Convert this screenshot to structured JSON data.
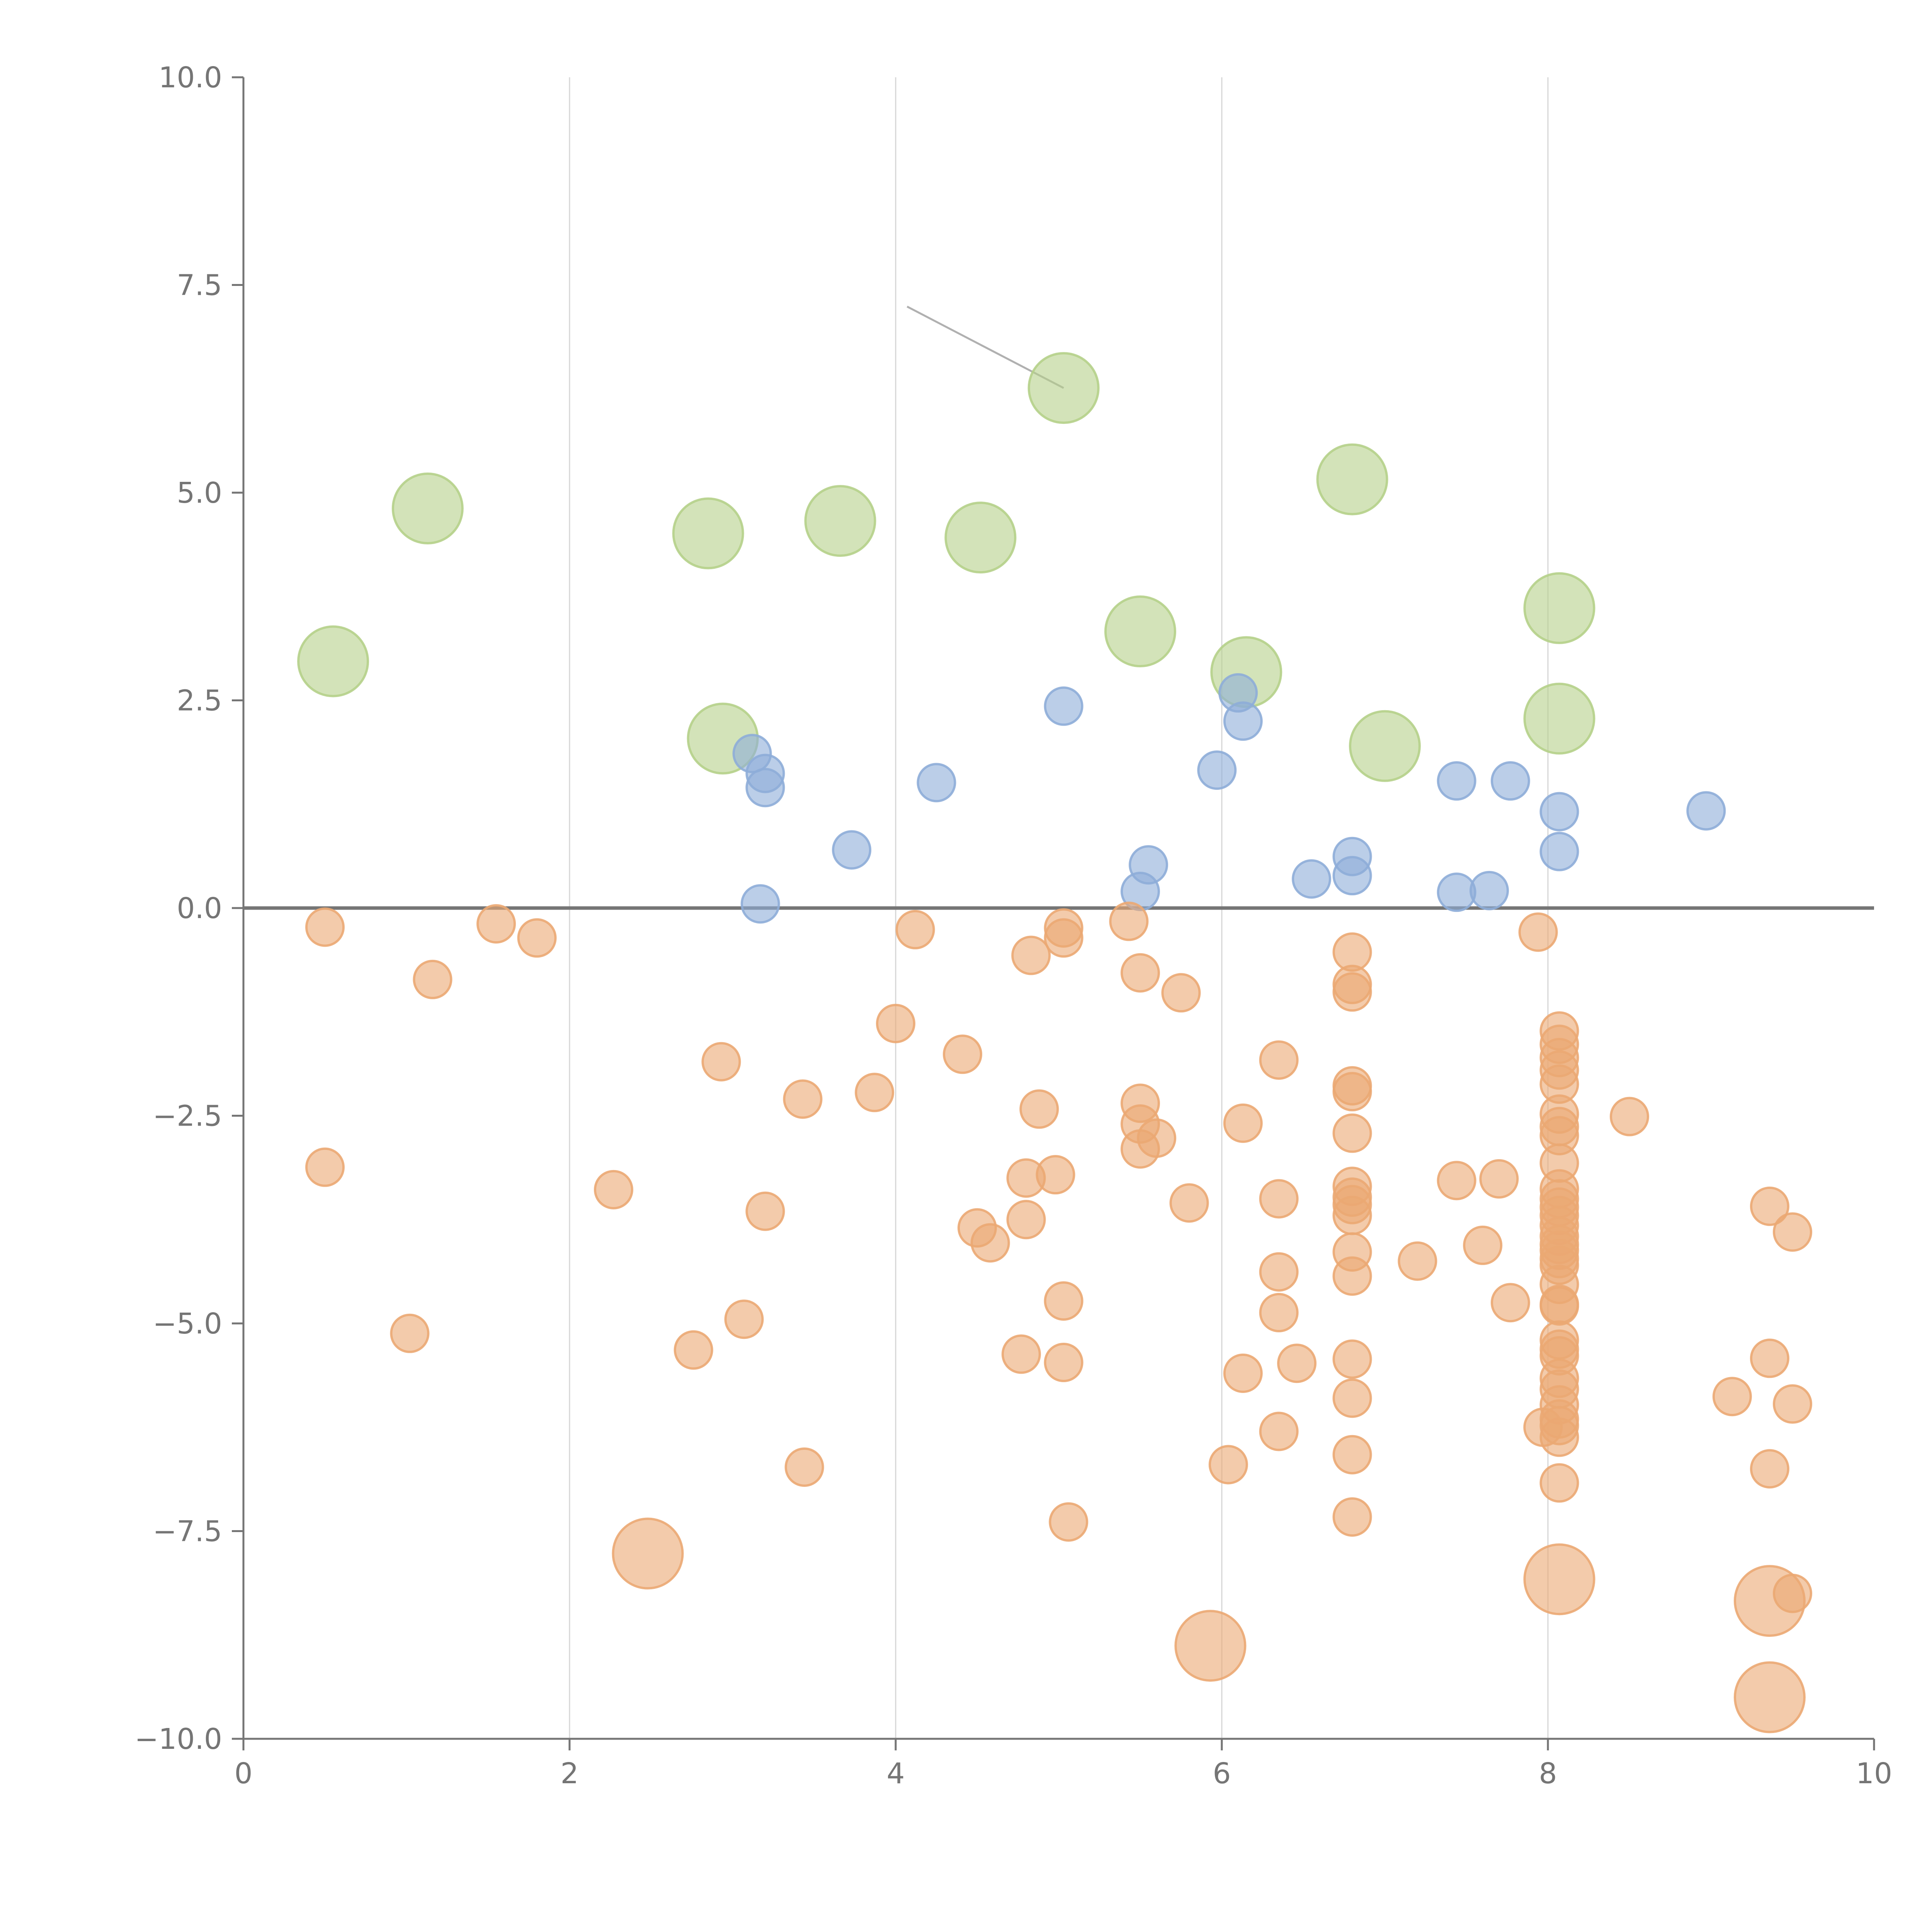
{
  "chart_data": {
    "type": "scatter",
    "title": "",
    "xlabel": "",
    "ylabel": "",
    "xlim": [
      0,
      10
    ],
    "ylim": [
      -10,
      10
    ],
    "x_ticks": [
      0,
      2,
      4,
      6,
      8,
      10
    ],
    "y_ticks": [
      -10,
      -7.5,
      -5,
      -2.5,
      0,
      2.5,
      5,
      7.5,
      10
    ],
    "x_tick_labels": [
      "0",
      "2",
      "4",
      "6",
      "8",
      "10"
    ],
    "y_tick_labels": [
      "−10.0",
      "−7.5",
      "−5.0",
      "−2.5",
      "0.0",
      "2.5",
      "5.0",
      "7.5",
      "10.0"
    ],
    "grid": "vertical lines at x ticks",
    "zero_line": true,
    "legend": "none",
    "colors": {
      "green": "#b5d08a",
      "blue": "#8eadd8",
      "orange": "#eba973"
    },
    "series": [
      {
        "color": "#b5d08a",
        "size": "large",
        "points": [
          [
            0.55,
            2.97
          ],
          [
            1.13,
            4.81
          ],
          [
            2.85,
            4.51
          ],
          [
            3.66,
            4.66
          ],
          [
            4.52,
            4.46
          ],
          [
            5.03,
            6.26
          ],
          [
            5.5,
            3.33
          ],
          [
            6.15,
            2.84
          ],
          [
            6.8,
            5.16
          ],
          [
            7.0,
            1.95
          ],
          [
            8.07,
            3.61
          ],
          [
            8.07,
            2.28
          ],
          [
            2.94,
            2.04
          ]
        ]
      },
      {
        "color": "#8eadd8",
        "size": "small",
        "points": [
          [
            3.12,
            1.86
          ],
          [
            3.2,
            1.62
          ],
          [
            3.2,
            1.45
          ],
          [
            3.17,
            0.05
          ],
          [
            3.73,
            0.7
          ],
          [
            4.25,
            1.51
          ],
          [
            5.03,
            2.43
          ],
          [
            5.55,
            0.52
          ],
          [
            5.5,
            0.2
          ],
          [
            5.97,
            1.66
          ],
          [
            6.1,
            2.59
          ],
          [
            6.13,
            2.25
          ],
          [
            6.55,
            0.35
          ],
          [
            6.8,
            0.62
          ],
          [
            6.8,
            0.39
          ],
          [
            7.44,
            0.19
          ],
          [
            7.64,
            0.21
          ],
          [
            7.44,
            1.53
          ],
          [
            7.77,
            1.53
          ],
          [
            8.07,
            1.16
          ],
          [
            8.07,
            0.68
          ],
          [
            8.97,
            1.17
          ]
        ]
      },
      {
        "color": "#eba973",
        "size": "small",
        "points": [
          [
            0.5,
            -0.23
          ],
          [
            1.16,
            -0.86
          ],
          [
            1.55,
            -0.19
          ],
          [
            1.8,
            -0.36
          ],
          [
            0.5,
            -3.12
          ],
          [
            1.02,
            -5.12
          ],
          [
            2.27,
            -3.39
          ],
          [
            2.76,
            -5.32
          ],
          [
            2.93,
            -1.85
          ],
          [
            3.07,
            -4.95
          ],
          [
            3.2,
            -3.65
          ],
          [
            3.43,
            -2.3
          ],
          [
            3.44,
            -6.73
          ],
          [
            3.87,
            -2.22
          ],
          [
            4.0,
            -1.39
          ],
          [
            4.12,
            -0.26
          ],
          [
            4.41,
            -1.76
          ],
          [
            4.5,
            -3.85
          ],
          [
            4.58,
            -4.03
          ],
          [
            4.77,
            -5.37
          ],
          [
            4.8,
            -3.25
          ],
          [
            4.8,
            -3.75
          ],
          [
            4.83,
            -0.57
          ],
          [
            4.88,
            -2.42
          ],
          [
            4.98,
            -3.21
          ],
          [
            5.03,
            -0.24
          ],
          [
            5.03,
            -0.36
          ],
          [
            5.03,
            -4.73
          ],
          [
            5.03,
            -5.47
          ],
          [
            5.06,
            -7.39
          ],
          [
            5.43,
            -0.16
          ],
          [
            5.5,
            -0.78
          ],
          [
            5.5,
            -2.35
          ],
          [
            5.5,
            -2.6
          ],
          [
            5.5,
            -2.9
          ],
          [
            5.6,
            -2.77
          ],
          [
            5.75,
            -1.02
          ],
          [
            5.8,
            -3.55
          ],
          [
            6.04,
            -6.7
          ],
          [
            6.13,
            -2.59
          ],
          [
            6.13,
            -5.6
          ],
          [
            6.35,
            -1.83
          ],
          [
            6.35,
            -3.5
          ],
          [
            6.35,
            -4.38
          ],
          [
            6.35,
            -4.87
          ],
          [
            6.35,
            -6.3
          ],
          [
            6.46,
            -5.48
          ],
          [
            6.8,
            -0.53
          ],
          [
            6.8,
            -0.92
          ],
          [
            6.8,
            -1.01
          ],
          [
            6.8,
            -2.14
          ],
          [
            6.8,
            -2.21
          ],
          [
            6.8,
            -2.71
          ],
          [
            6.8,
            -3.35
          ],
          [
            6.8,
            -3.48
          ],
          [
            6.8,
            -3.57
          ],
          [
            6.8,
            -3.7
          ],
          [
            6.8,
            -4.14
          ],
          [
            6.8,
            -4.43
          ],
          [
            6.8,
            -5.43
          ],
          [
            6.8,
            -5.9
          ],
          [
            6.8,
            -6.58
          ],
          [
            6.8,
            -7.33
          ],
          [
            7.2,
            -4.25
          ],
          [
            7.44,
            -3.28
          ],
          [
            7.6,
            -4.06
          ],
          [
            7.7,
            -3.26
          ],
          [
            7.77,
            -4.75
          ],
          [
            7.94,
            -0.29
          ],
          [
            8.07,
            -1.48
          ],
          [
            8.07,
            -1.64
          ],
          [
            8.07,
            -1.8
          ],
          [
            8.07,
            -1.95
          ],
          [
            8.07,
            -2.12
          ],
          [
            8.07,
            -2.48
          ],
          [
            8.07,
            -2.63
          ],
          [
            8.07,
            -2.74
          ],
          [
            8.07,
            -3.07
          ],
          [
            8.07,
            -3.38
          ],
          [
            8.07,
            -3.5
          ],
          [
            8.07,
            -3.6
          ],
          [
            8.07,
            -3.7
          ],
          [
            8.07,
            -3.82
          ],
          [
            8.07,
            -3.95
          ],
          [
            8.07,
            -4.05
          ],
          [
            8.07,
            -4.12
          ],
          [
            8.07,
            -4.22
          ],
          [
            8.07,
            -4.3
          ],
          [
            8.07,
            -4.53
          ],
          [
            8.07,
            -4.77
          ],
          [
            8.07,
            -4.79
          ],
          [
            8.07,
            -5.2
          ],
          [
            8.07,
            -5.31
          ],
          [
            8.07,
            -5.39
          ],
          [
            8.07,
            -5.66
          ],
          [
            8.07,
            -5.79
          ],
          [
            8.07,
            -5.98
          ],
          [
            8.07,
            -6.15
          ],
          [
            8.07,
            -6.23
          ],
          [
            8.07,
            -6.37
          ],
          [
            8.07,
            -6.92
          ],
          [
            7.97,
            -6.25
          ],
          [
            8.5,
            -2.51
          ],
          [
            9.13,
            -5.88
          ],
          [
            9.36,
            -3.59
          ],
          [
            9.36,
            -5.42
          ],
          [
            9.36,
            -6.75
          ],
          [
            9.5,
            -3.9
          ],
          [
            9.5,
            -5.97
          ],
          [
            9.5,
            -8.25
          ]
        ]
      },
      {
        "color": "#eba973",
        "size": "large",
        "points": [
          [
            2.48,
            -7.77
          ],
          [
            5.93,
            -8.88
          ],
          [
            8.07,
            -8.08
          ],
          [
            9.36,
            -8.34
          ],
          [
            9.36,
            -9.5
          ]
        ]
      }
    ]
  }
}
